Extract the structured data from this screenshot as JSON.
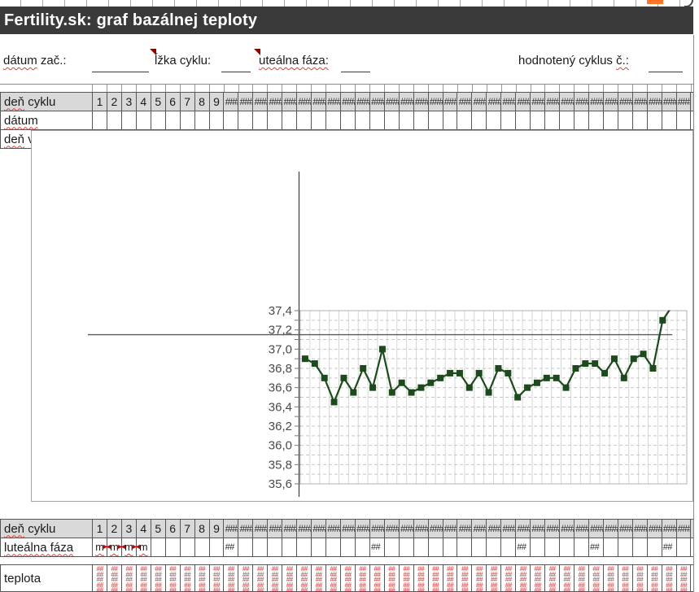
{
  "title_bar": {
    "title": "Fertility.sk: graf bazálnej teploty"
  },
  "form": {
    "fields": [
      {
        "name": "datum-zac",
        "label_parts": [
          {
            "text": "dátum",
            "misspelled": true
          },
          {
            "text": " zač.:",
            "misspelled": false
          }
        ],
        "clip_flag": false,
        "value": ""
      },
      {
        "name": "dlzka-cyklu",
        "label_parts": [
          {
            "text": "ĺžka cyklu:",
            "misspelled": false
          }
        ],
        "clip_flag": true,
        "value": ""
      },
      {
        "name": "lutealna-faza",
        "label_parts": [
          {
            "text": "uteálna fáza:",
            "misspelled": true
          }
        ],
        "clip_flag": true,
        "value": ""
      },
      {
        "name": "hodnoteny-cyklus",
        "label_parts": [
          {
            "text": "hodnotený cyklus ",
            "misspelled": false
          },
          {
            "text": "č.:",
            "misspelled": true
          }
        ],
        "clip_flag": false,
        "value": ""
      }
    ]
  },
  "top_table": {
    "rows": [
      {
        "name": "den-cyklu",
        "label_parts": [
          {
            "text": "deň",
            "misspelled": true
          },
          {
            "text": " cyklu",
            "misspelled": false
          }
        ],
        "header": true
      },
      {
        "name": "datum",
        "label_parts": [
          {
            "text": "dátum",
            "misspelled": true
          }
        ],
        "header": false
      },
      {
        "name": "den-v",
        "label_parts": [
          {
            "text": "deň",
            "misspelled": true
          },
          {
            "text": " v",
            "misspelled": false
          }
        ],
        "header": false
      }
    ],
    "day_numbers": [
      "1",
      "2",
      "3",
      "4",
      "5",
      "6",
      "7",
      "8",
      "9"
    ],
    "overflow_marker": "###"
  },
  "bottom_table": {
    "rows": [
      {
        "name": "den-cyklu",
        "label_parts": [
          {
            "text": "deň",
            "misspelled": true
          },
          {
            "text": " cyklu",
            "misspelled": false
          }
        ],
        "header": true
      },
      {
        "name": "lutealna-faza",
        "label_parts": [
          {
            "text": "luteálna fáza",
            "misspelled": true
          }
        ],
        "header": false
      },
      {
        "name": "teplota",
        "label_parts": [
          {
            "text": "teplota",
            "misspelled": false
          }
        ],
        "header": false
      }
    ],
    "day_numbers": [
      "1",
      "2",
      "3",
      "4",
      "5",
      "6",
      "7",
      "8",
      "9"
    ],
    "overflow_marker": "###",
    "luteal_cells": [
      {
        "col": 1,
        "text": "m",
        "clip_left": false,
        "clip_right": true
      },
      {
        "col": 2,
        "text": "m",
        "clip_left": true,
        "clip_right": true
      },
      {
        "col": 3,
        "text": "m",
        "clip_left": true,
        "clip_right": true
      },
      {
        "col": 4,
        "text": "m",
        "clip_left": true,
        "clip_right": false
      }
    ],
    "luteal_overflow_cols": [
      10,
      20,
      30,
      35,
      40
    ],
    "luteal_overflow_marker": "##",
    "teplota_overflow_marker": "##"
  },
  "chart_data": {
    "type": "line",
    "title": "",
    "xlabel": "",
    "ylabel": "",
    "ylim": [
      35.6,
      37.4
    ],
    "ytick_step": 0.2,
    "y_tick_labels": [
      "37,4",
      "37,2",
      "37,0",
      "36,8",
      "36,6",
      "36,4",
      "36,2",
      "36,0",
      "35,8",
      "35,6"
    ],
    "x_slots": 40,
    "grid": true,
    "legend": null,
    "coverline": 37.15,
    "days": [
      1,
      2,
      3,
      4,
      5,
      6,
      7,
      8,
      9,
      10,
      11,
      12,
      13,
      14,
      15,
      16,
      17,
      18,
      19,
      20,
      21,
      22,
      23,
      24,
      25,
      26,
      27,
      28,
      29,
      30,
      31,
      32,
      33,
      34,
      35,
      36,
      37,
      38,
      39
    ],
    "values": [
      36.9,
      36.85,
      36.7,
      36.45,
      36.7,
      36.55,
      36.8,
      36.6,
      37.0,
      36.55,
      36.65,
      36.55,
      36.6,
      36.65,
      36.7,
      36.75,
      36.75,
      36.6,
      36.75,
      36.55,
      36.8,
      36.75,
      36.5,
      36.6,
      36.65,
      36.7,
      36.7,
      36.6,
      36.8,
      36.85,
      36.85,
      36.75,
      36.9,
      36.7,
      36.9,
      36.95,
      36.8,
      37.3,
      37.45
    ]
  },
  "colors": {
    "title_bg": "#3a3a3a",
    "title_fg": "#ffffff",
    "header_row_bg": "#d9d9d9",
    "cell_border": "#565656",
    "light_border": "#a3a3a3",
    "series_green": "#1c4a1c",
    "hash_red": "#cc3333",
    "flag_red": "#8b0000",
    "squiggle_red": "#e23b2e",
    "orange_cell": "#ff7426",
    "axis_text": "#4a4a4a"
  }
}
